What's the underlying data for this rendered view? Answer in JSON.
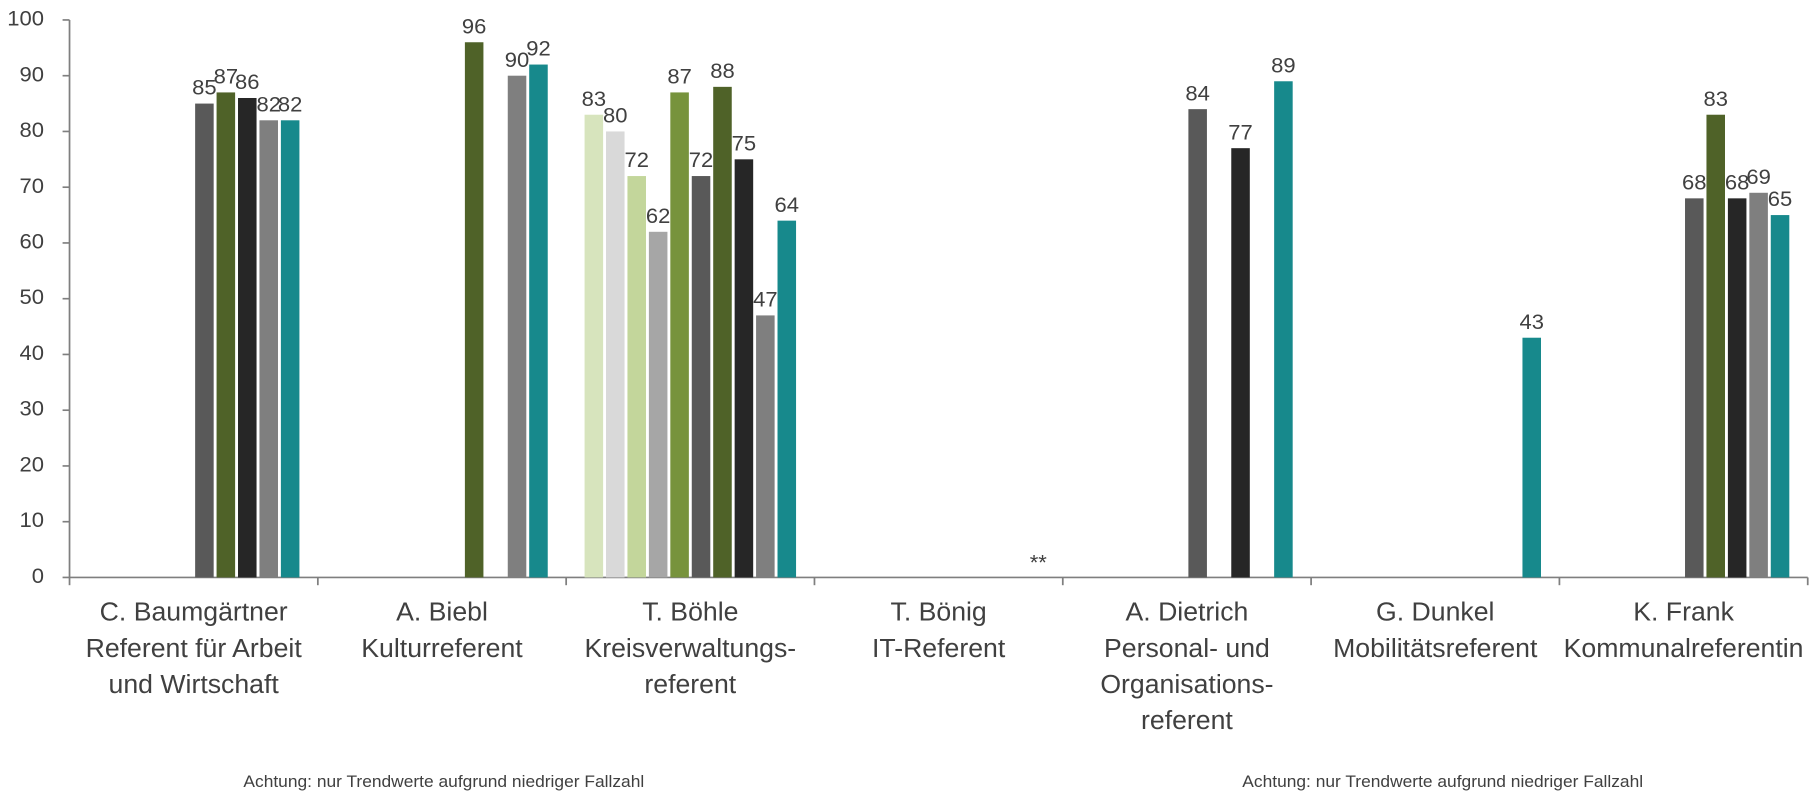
{
  "chart_data": {
    "type": "bar",
    "categories": [
      [
        "C. Baumgärtner",
        "Referent für Arbeit",
        "und Wirtschaft"
      ],
      [
        "A. Biebl",
        "Kulturreferent"
      ],
      [
        "T. Böhle",
        "Kreisverwaltungs-",
        "referent"
      ],
      [
        "T. Bönig",
        "IT-Referent"
      ],
      [
        "A. Dietrich",
        "Personal- und",
        "Organisations-",
        "referent"
      ],
      [
        "G. Dunkel",
        "Mobilitätsreferent"
      ],
      [
        "K. Frank",
        "Kommunalreferentin"
      ]
    ],
    "series": [
      {
        "color": "#d7e4bd",
        "values": [
          null,
          null,
          83,
          null,
          null,
          null,
          null
        ]
      },
      {
        "color": "#d9d9d9",
        "values": [
          null,
          null,
          80,
          null,
          null,
          null,
          null
        ]
      },
      {
        "color": "#c3d69b",
        "values": [
          null,
          null,
          72,
          null,
          null,
          null,
          null
        ]
      },
      {
        "color": "#a6a6a6",
        "values": [
          null,
          null,
          62,
          null,
          null,
          null,
          null
        ]
      },
      {
        "color": "#77933c",
        "values": [
          null,
          null,
          87,
          null,
          null,
          null,
          null
        ]
      },
      {
        "color": "#595959",
        "values": [
          85,
          null,
          72,
          null,
          84,
          null,
          68
        ]
      },
      {
        "color": "#4f6228",
        "values": [
          87,
          96,
          88,
          null,
          null,
          null,
          83
        ]
      },
      {
        "color": "#262626",
        "values": [
          86,
          null,
          75,
          null,
          77,
          null,
          68
        ]
      },
      {
        "color": "#7f7f7f",
        "values": [
          82,
          90,
          47,
          null,
          null,
          null,
          69
        ]
      },
      {
        "color": "#17898c",
        "values": [
          82,
          92,
          64,
          null,
          89,
          43,
          65
        ]
      }
    ],
    "ylim": [
      0,
      100
    ],
    "yticks": [
      0,
      10,
      20,
      30,
      40,
      50,
      60,
      70,
      80,
      90,
      100
    ],
    "annotations": [
      "**",
      "Achtung: nur Trendwerte aufgrund niedriger Fallzahl",
      "Achtung: nur Trendwerte aufgrund niedriger Fallzahl"
    ]
  }
}
